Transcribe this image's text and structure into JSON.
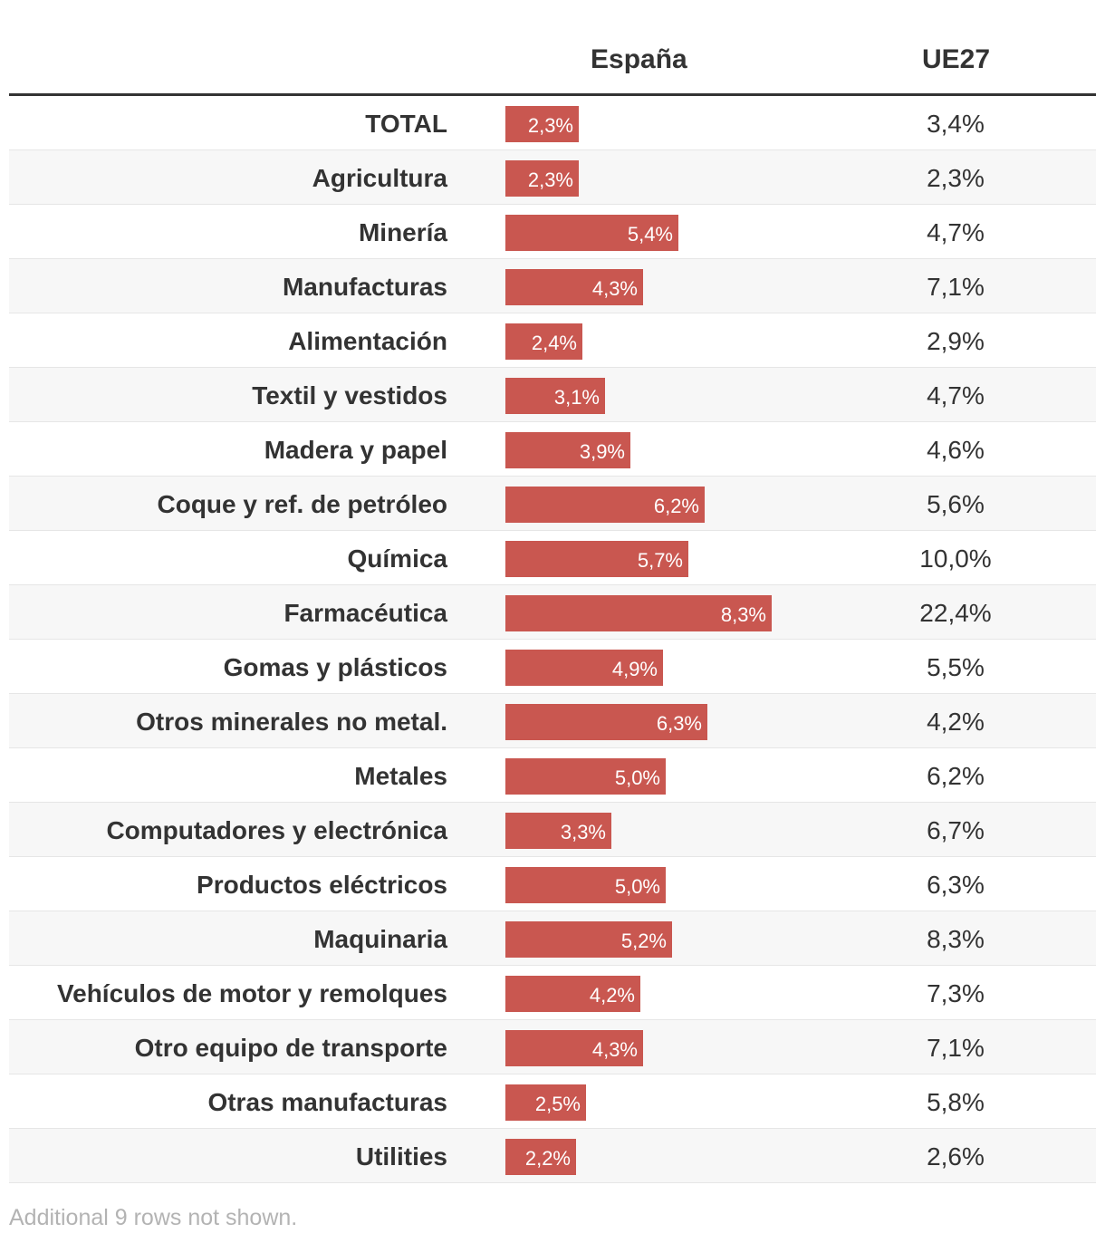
{
  "chart_data": {
    "type": "table",
    "columns": [
      "España",
      "UE27"
    ],
    "bar_color": "#c95750",
    "bar_max": 8.3,
    "rows": [
      {
        "label": "TOTAL",
        "spain": 2.3,
        "spain_label": "2,3%",
        "ue27": 3.4,
        "ue27_label": "3,4%"
      },
      {
        "label": "Agricultura",
        "spain": 2.3,
        "spain_label": "2,3%",
        "ue27": 2.3,
        "ue27_label": "2,3%"
      },
      {
        "label": "Minería",
        "spain": 5.4,
        "spain_label": "5,4%",
        "ue27": 4.7,
        "ue27_label": "4,7%"
      },
      {
        "label": "Manufacturas",
        "spain": 4.3,
        "spain_label": "4,3%",
        "ue27": 7.1,
        "ue27_label": "7,1%"
      },
      {
        "label": "Alimentación",
        "spain": 2.4,
        "spain_label": "2,4%",
        "ue27": 2.9,
        "ue27_label": "2,9%"
      },
      {
        "label": "Textil y vestidos",
        "spain": 3.1,
        "spain_label": "3,1%",
        "ue27": 4.7,
        "ue27_label": "4,7%"
      },
      {
        "label": "Madera y papel",
        "spain": 3.9,
        "spain_label": "3,9%",
        "ue27": 4.6,
        "ue27_label": "4,6%"
      },
      {
        "label": "Coque y ref. de petróleo",
        "spain": 6.2,
        "spain_label": "6,2%",
        "ue27": 5.6,
        "ue27_label": "5,6%"
      },
      {
        "label": "Química",
        "spain": 5.7,
        "spain_label": "5,7%",
        "ue27": 10.0,
        "ue27_label": "10,0%"
      },
      {
        "label": "Farmacéutica",
        "spain": 8.3,
        "spain_label": "8,3%",
        "ue27": 22.4,
        "ue27_label": "22,4%"
      },
      {
        "label": "Gomas y plásticos",
        "spain": 4.9,
        "spain_label": "4,9%",
        "ue27": 5.5,
        "ue27_label": "5,5%"
      },
      {
        "label": "Otros minerales no metal.",
        "spain": 6.3,
        "spain_label": "6,3%",
        "ue27": 4.2,
        "ue27_label": "4,2%"
      },
      {
        "label": "Metales",
        "spain": 5.0,
        "spain_label": "5,0%",
        "ue27": 6.2,
        "ue27_label": "6,2%"
      },
      {
        "label": "Computadores y electrónica",
        "spain": 3.3,
        "spain_label": "3,3%",
        "ue27": 6.7,
        "ue27_label": "6,7%"
      },
      {
        "label": "Productos eléctricos",
        "spain": 5.0,
        "spain_label": "5,0%",
        "ue27": 6.3,
        "ue27_label": "6,3%"
      },
      {
        "label": "Maquinaria",
        "spain": 5.2,
        "spain_label": "5,2%",
        "ue27": 8.3,
        "ue27_label": "8,3%"
      },
      {
        "label": "Vehículos de motor y remolques",
        "spain": 4.2,
        "spain_label": "4,2%",
        "ue27": 7.3,
        "ue27_label": "7,3%"
      },
      {
        "label": "Otro equipo de transporte",
        "spain": 4.3,
        "spain_label": "4,3%",
        "ue27": 7.1,
        "ue27_label": "7,1%"
      },
      {
        "label": "Otras manufacturas",
        "spain": 2.5,
        "spain_label": "2,5%",
        "ue27": 5.8,
        "ue27_label": "5,8%"
      },
      {
        "label": "Utilities",
        "spain": 2.2,
        "spain_label": "2,2%",
        "ue27": 2.6,
        "ue27_label": "2,6%"
      }
    ],
    "footnote": "Additional 9 rows not shown."
  }
}
